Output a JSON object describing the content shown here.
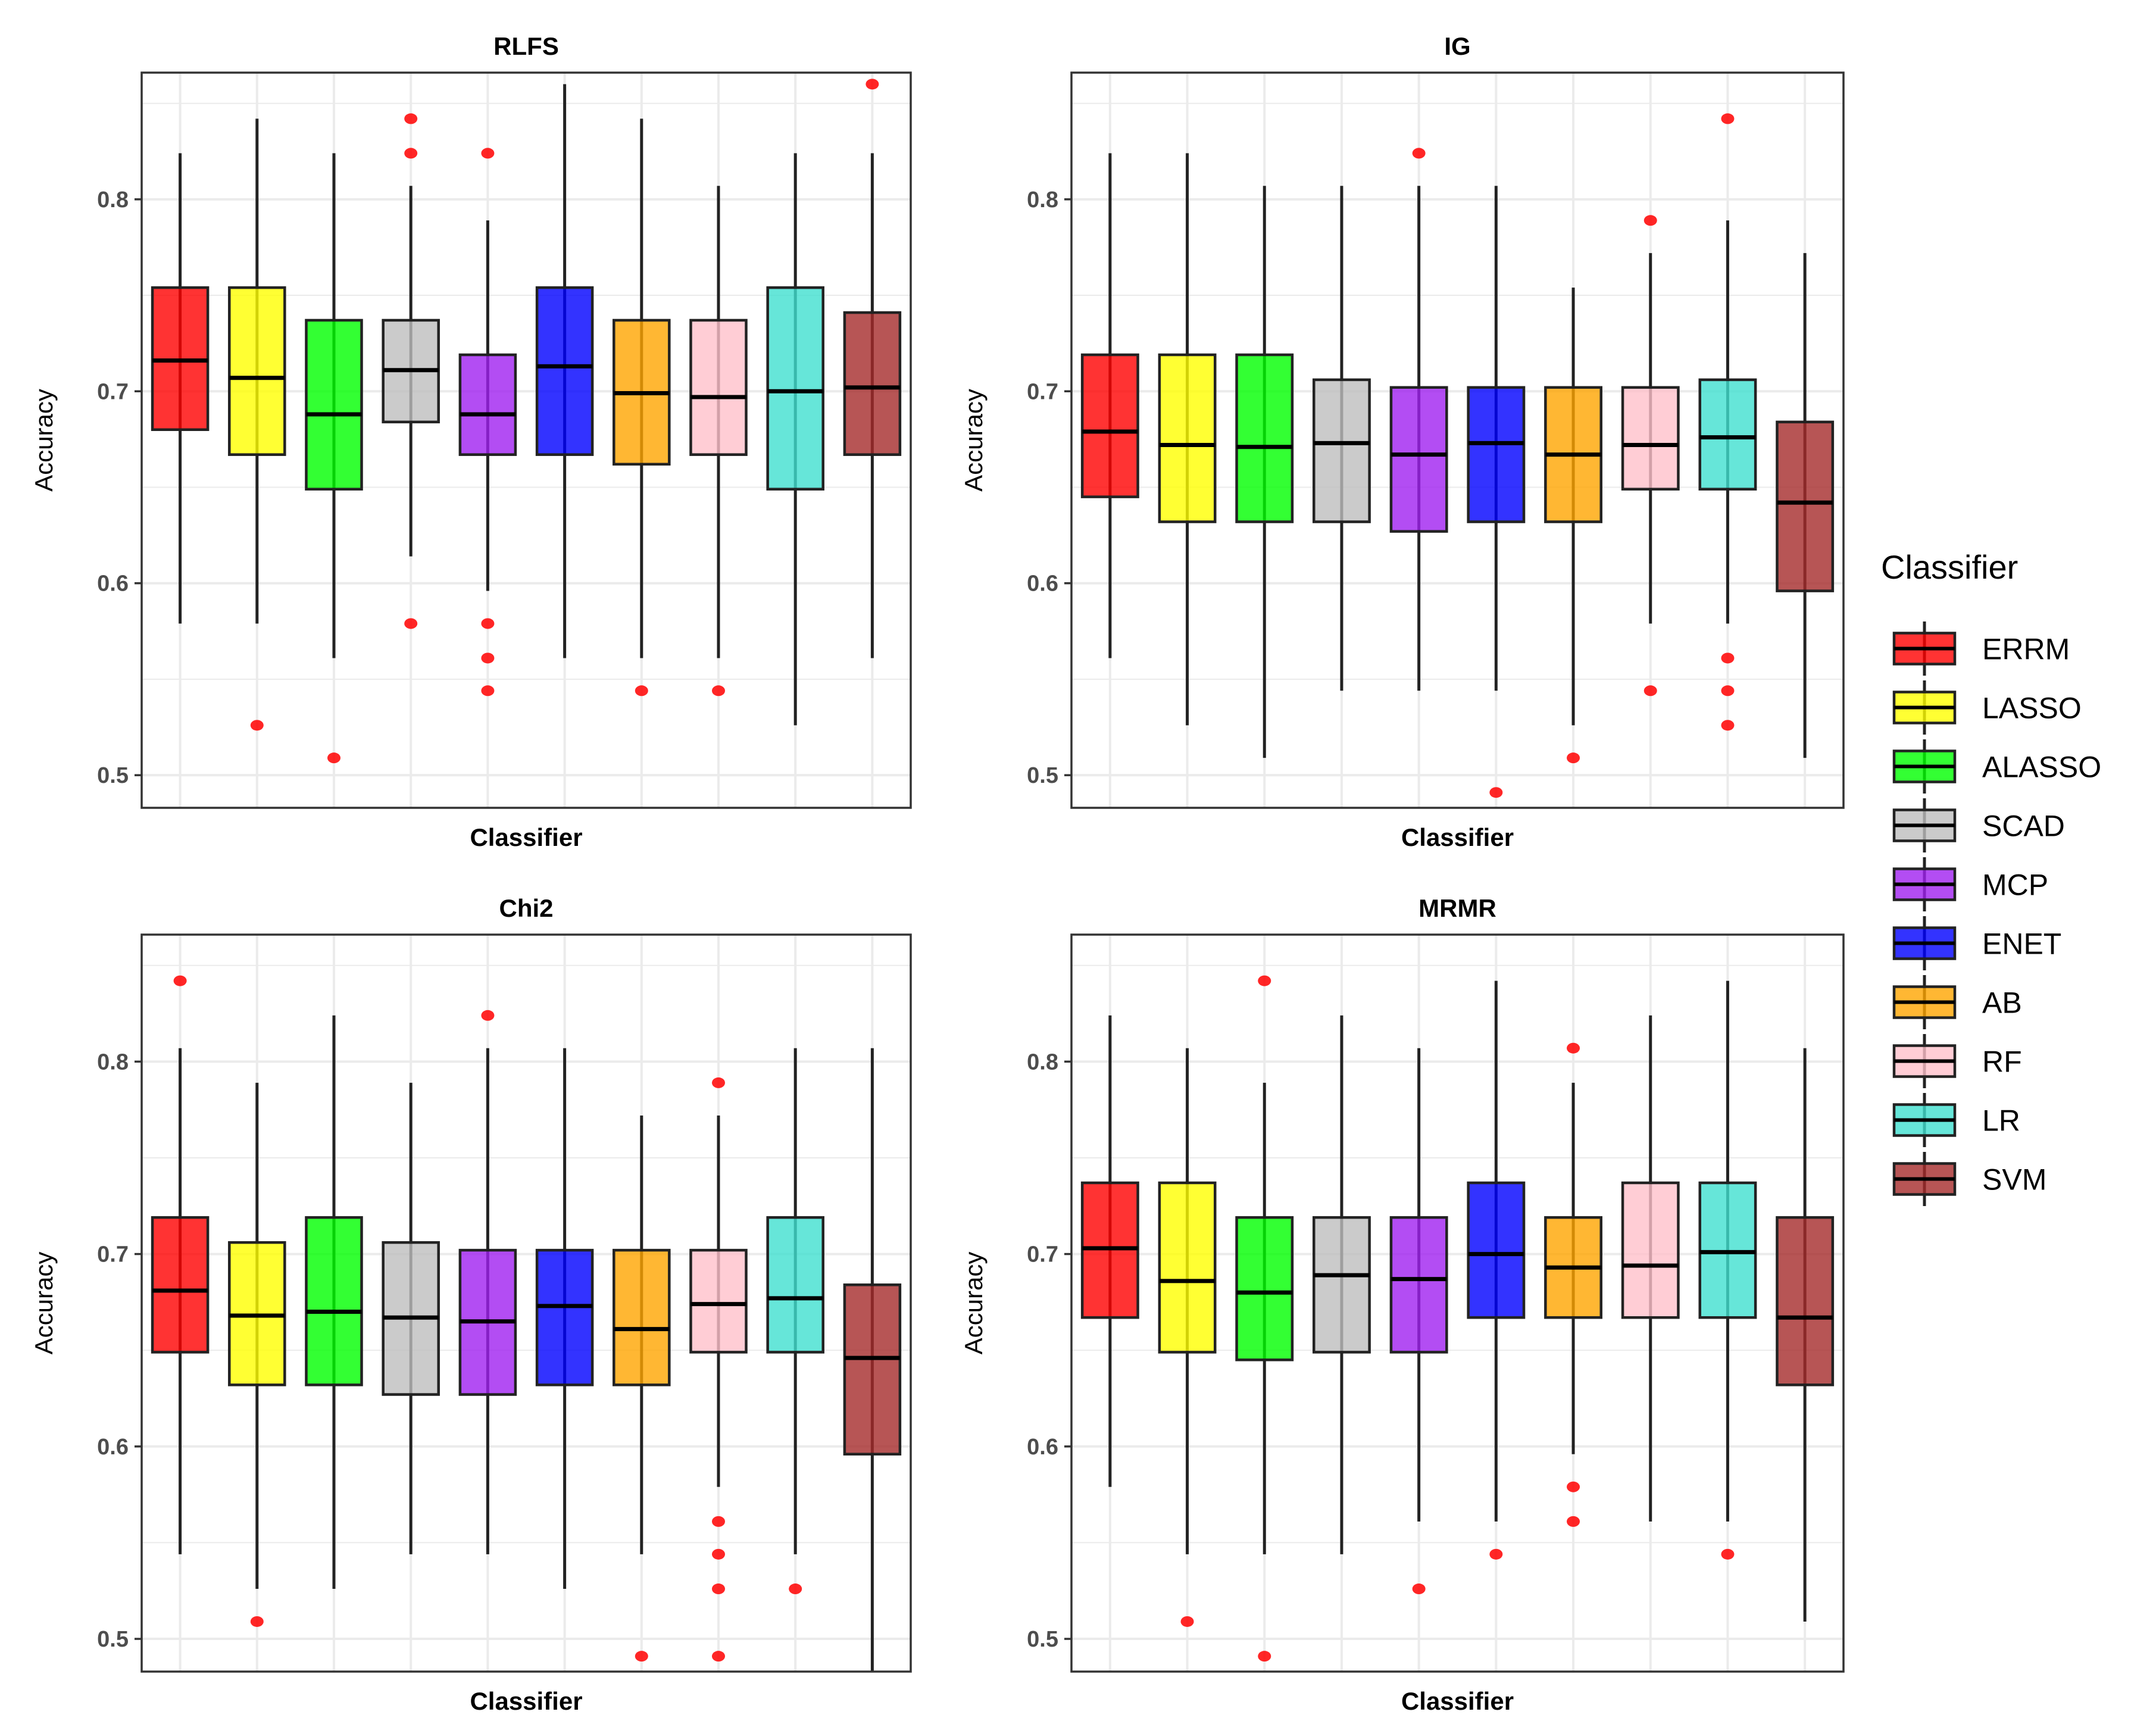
{
  "chart_data": [
    {
      "type": "boxplot",
      "title": "RLFS",
      "xlabel": "Classifier",
      "ylabel": "Accuracy",
      "ylim": [
        0.483,
        0.866
      ],
      "yticks": [
        0.5,
        0.6,
        0.7,
        0.8
      ],
      "boxes": [
        {
          "name": "ERRM",
          "min": 0.579,
          "q1": 0.68,
          "median": 0.716,
          "q3": 0.754,
          "max": 0.824,
          "outliers": []
        },
        {
          "name": "LASSO",
          "min": 0.579,
          "q1": 0.667,
          "median": 0.707,
          "q3": 0.754,
          "max": 0.842,
          "outliers": [
            0.526
          ]
        },
        {
          "name": "ALASSO",
          "min": 0.561,
          "q1": 0.649,
          "median": 0.688,
          "q3": 0.737,
          "max": 0.824,
          "outliers": [
            0.509
          ]
        },
        {
          "name": "SCAD",
          "min": 0.614,
          "q1": 0.684,
          "median": 0.711,
          "q3": 0.737,
          "max": 0.807,
          "outliers": [
            0.842,
            0.824,
            0.579
          ]
        },
        {
          "name": "MCP",
          "min": 0.596,
          "q1": 0.667,
          "median": 0.688,
          "q3": 0.719,
          "max": 0.789,
          "outliers": [
            0.824,
            0.579,
            0.561,
            0.544
          ]
        },
        {
          "name": "ENET",
          "min": 0.561,
          "q1": 0.667,
          "median": 0.713,
          "q3": 0.754,
          "max": 0.86,
          "outliers": []
        },
        {
          "name": "AB",
          "min": 0.561,
          "q1": 0.662,
          "median": 0.699,
          "q3": 0.737,
          "max": 0.842,
          "outliers": [
            0.544
          ]
        },
        {
          "name": "RF",
          "min": 0.561,
          "q1": 0.667,
          "median": 0.697,
          "q3": 0.737,
          "max": 0.807,
          "outliers": [
            0.544
          ]
        },
        {
          "name": "LR",
          "min": 0.526,
          "q1": 0.649,
          "median": 0.7,
          "q3": 0.754,
          "max": 0.824,
          "outliers": []
        },
        {
          "name": "SVM",
          "min": 0.561,
          "q1": 0.667,
          "median": 0.702,
          "q3": 0.741,
          "max": 0.824,
          "outliers": [
            0.86
          ]
        }
      ]
    },
    {
      "type": "boxplot",
      "title": "IG",
      "xlabel": "Classifier",
      "ylabel": "Accuracy",
      "ylim": [
        0.483,
        0.866
      ],
      "yticks": [
        0.5,
        0.6,
        0.7,
        0.8
      ],
      "boxes": [
        {
          "name": "ERRM",
          "min": 0.561,
          "q1": 0.645,
          "median": 0.679,
          "q3": 0.719,
          "max": 0.824,
          "outliers": []
        },
        {
          "name": "LASSO",
          "min": 0.526,
          "q1": 0.632,
          "median": 0.672,
          "q3": 0.719,
          "max": 0.824,
          "outliers": []
        },
        {
          "name": "ALASSO",
          "min": 0.509,
          "q1": 0.632,
          "median": 0.671,
          "q3": 0.719,
          "max": 0.807,
          "outliers": []
        },
        {
          "name": "SCAD",
          "min": 0.544,
          "q1": 0.632,
          "median": 0.673,
          "q3": 0.706,
          "max": 0.807,
          "outliers": []
        },
        {
          "name": "MCP",
          "min": 0.544,
          "q1": 0.627,
          "median": 0.667,
          "q3": 0.702,
          "max": 0.807,
          "outliers": [
            0.824
          ]
        },
        {
          "name": "ENET",
          "min": 0.544,
          "q1": 0.632,
          "median": 0.673,
          "q3": 0.702,
          "max": 0.807,
          "outliers": [
            0.491
          ]
        },
        {
          "name": "AB",
          "min": 0.526,
          "q1": 0.632,
          "median": 0.667,
          "q3": 0.702,
          "max": 0.754,
          "outliers": [
            0.509
          ]
        },
        {
          "name": "RF",
          "min": 0.579,
          "q1": 0.649,
          "median": 0.672,
          "q3": 0.702,
          "max": 0.772,
          "outliers": [
            0.789,
            0.544
          ]
        },
        {
          "name": "LR",
          "min": 0.579,
          "q1": 0.649,
          "median": 0.676,
          "q3": 0.706,
          "max": 0.789,
          "outliers": [
            0.842,
            0.561,
            0.544,
            0.526
          ]
        },
        {
          "name": "SVM",
          "min": 0.509,
          "q1": 0.596,
          "median": 0.642,
          "q3": 0.684,
          "max": 0.772,
          "outliers": []
        }
      ]
    },
    {
      "type": "boxplot",
      "title": "Chi2",
      "xlabel": "Classifier",
      "ylabel": "Accuracy",
      "ylim": [
        0.483,
        0.866
      ],
      "yticks": [
        0.5,
        0.6,
        0.7,
        0.8
      ],
      "boxes": [
        {
          "name": "ERRM",
          "min": 0.544,
          "q1": 0.649,
          "median": 0.681,
          "q3": 0.719,
          "max": 0.807,
          "outliers": [
            0.842
          ]
        },
        {
          "name": "LASSO",
          "min": 0.526,
          "q1": 0.632,
          "median": 0.668,
          "q3": 0.706,
          "max": 0.789,
          "outliers": [
            0.509
          ]
        },
        {
          "name": "ALASSO",
          "min": 0.526,
          "q1": 0.632,
          "median": 0.67,
          "q3": 0.719,
          "max": 0.824,
          "outliers": []
        },
        {
          "name": "SCAD",
          "min": 0.544,
          "q1": 0.627,
          "median": 0.667,
          "q3": 0.706,
          "max": 0.789,
          "outliers": []
        },
        {
          "name": "MCP",
          "min": 0.544,
          "q1": 0.627,
          "median": 0.665,
          "q3": 0.702,
          "max": 0.807,
          "outliers": [
            0.824
          ]
        },
        {
          "name": "ENET",
          "min": 0.526,
          "q1": 0.632,
          "median": 0.673,
          "q3": 0.702,
          "max": 0.807,
          "outliers": []
        },
        {
          "name": "AB",
          "min": 0.544,
          "q1": 0.632,
          "median": 0.661,
          "q3": 0.702,
          "max": 0.772,
          "outliers": [
            0.491
          ]
        },
        {
          "name": "RF",
          "min": 0.579,
          "q1": 0.649,
          "median": 0.674,
          "q3": 0.702,
          "max": 0.772,
          "outliers": [
            0.789,
            0.561,
            0.544,
            0.526,
            0.491
          ]
        },
        {
          "name": "LR",
          "min": 0.544,
          "q1": 0.649,
          "median": 0.677,
          "q3": 0.719,
          "max": 0.807,
          "outliers": [
            0.526
          ]
        },
        {
          "name": "SVM",
          "min": 0.483,
          "q1": 0.596,
          "median": 0.646,
          "q3": 0.684,
          "max": 0.807,
          "outliers": []
        }
      ]
    },
    {
      "type": "boxplot",
      "title": "MRMR",
      "xlabel": "Classifier",
      "ylabel": "Accuracy",
      "ylim": [
        0.483,
        0.866
      ],
      "yticks": [
        0.5,
        0.6,
        0.7,
        0.8
      ],
      "boxes": [
        {
          "name": "ERRM",
          "min": 0.579,
          "q1": 0.667,
          "median": 0.703,
          "q3": 0.737,
          "max": 0.824,
          "outliers": []
        },
        {
          "name": "LASSO",
          "min": 0.544,
          "q1": 0.649,
          "median": 0.686,
          "q3": 0.737,
          "max": 0.807,
          "outliers": [
            0.509
          ]
        },
        {
          "name": "ALASSO",
          "min": 0.544,
          "q1": 0.645,
          "median": 0.68,
          "q3": 0.719,
          "max": 0.789,
          "outliers": [
            0.842,
            0.491
          ]
        },
        {
          "name": "SCAD",
          "min": 0.544,
          "q1": 0.649,
          "median": 0.689,
          "q3": 0.719,
          "max": 0.824,
          "outliers": []
        },
        {
          "name": "MCP",
          "min": 0.561,
          "q1": 0.649,
          "median": 0.687,
          "q3": 0.719,
          "max": 0.807,
          "outliers": [
            0.526
          ]
        },
        {
          "name": "ENET",
          "min": 0.561,
          "q1": 0.667,
          "median": 0.7,
          "q3": 0.737,
          "max": 0.842,
          "outliers": [
            0.544
          ]
        },
        {
          "name": "AB",
          "min": 0.596,
          "q1": 0.667,
          "median": 0.693,
          "q3": 0.719,
          "max": 0.789,
          "outliers": [
            0.807,
            0.579,
            0.561
          ]
        },
        {
          "name": "RF",
          "min": 0.561,
          "q1": 0.667,
          "median": 0.694,
          "q3": 0.737,
          "max": 0.824,
          "outliers": []
        },
        {
          "name": "LR",
          "min": 0.561,
          "q1": 0.667,
          "median": 0.701,
          "q3": 0.737,
          "max": 0.842,
          "outliers": [
            0.544
          ]
        },
        {
          "name": "SVM",
          "min": 0.509,
          "q1": 0.632,
          "median": 0.667,
          "q3": 0.719,
          "max": 0.807,
          "outliers": []
        }
      ]
    }
  ],
  "legend": {
    "title": "Classifier",
    "items": [
      {
        "label": "ERRM",
        "color": "#FF0000"
      },
      {
        "label": "LASSO",
        "color": "#FFFF00"
      },
      {
        "label": "ALASSO",
        "color": "#00FF00"
      },
      {
        "label": "SCAD",
        "color": "#BEBEBE"
      },
      {
        "label": "MCP",
        "color": "#A020F0"
      },
      {
        "label": "ENET",
        "color": "#0000FF"
      },
      {
        "label": "AB",
        "color": "#FFA500"
      },
      {
        "label": "RF",
        "color": "#FFC0CB"
      },
      {
        "label": "LR",
        "color": "#40E0D0"
      },
      {
        "label": "SVM",
        "color": "#A52A2A"
      }
    ]
  },
  "style": {
    "outlier_color": "#FF0000",
    "line_color": "#222222",
    "grid_color": "#EBEBEB",
    "panel_border_color": "#333333"
  }
}
